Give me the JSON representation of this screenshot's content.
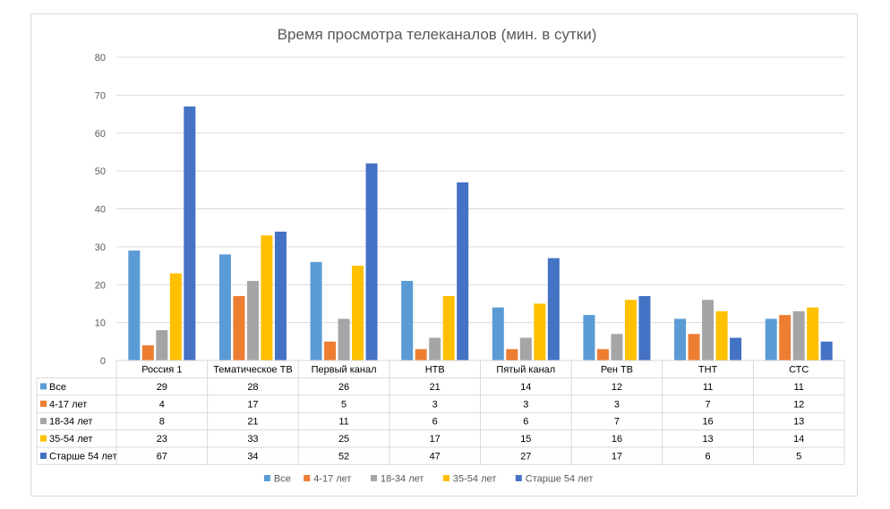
{
  "chart_data": {
    "type": "bar",
    "title": "Время просмотра телеканалов (мин. в сутки)",
    "xlabel": "",
    "ylabel": "",
    "ylim": [
      0,
      80
    ],
    "yticks": [
      0,
      10,
      20,
      30,
      40,
      50,
      60,
      70,
      80
    ],
    "grid": true,
    "legend_position": "bottom",
    "data_table": true,
    "categories": [
      "Россия 1",
      "Тематическое ТВ",
      "Первый канал",
      "НТВ",
      "Пятый канал",
      "Рен ТВ",
      "ТНТ",
      "СТС"
    ],
    "series": [
      {
        "name": "Все",
        "color": "#5B9BD5",
        "values": [
          29,
          28,
          26,
          21,
          14,
          12,
          11,
          11
        ]
      },
      {
        "name": "4-17 лет",
        "color": "#ED7D31",
        "values": [
          4,
          17,
          5,
          3,
          3,
          3,
          7,
          12
        ]
      },
      {
        "name": "18-34 лет",
        "color": "#A5A5A5",
        "values": [
          8,
          21,
          11,
          6,
          6,
          7,
          16,
          13
        ]
      },
      {
        "name": "35-54 лет",
        "color": "#FFC000",
        "values": [
          23,
          33,
          25,
          17,
          15,
          16,
          13,
          14
        ]
      },
      {
        "name": "Старше 54 лет",
        "color": "#4472C4",
        "values": [
          67,
          34,
          52,
          47,
          27,
          17,
          6,
          5
        ]
      }
    ]
  }
}
